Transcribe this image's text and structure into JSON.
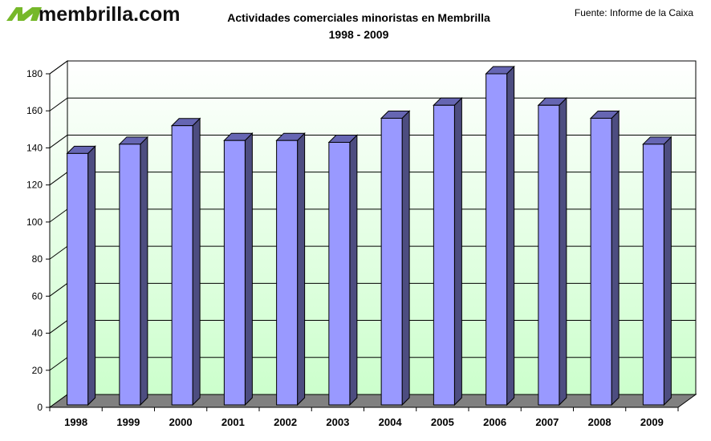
{
  "header": {
    "logo_text": "membrilla.com",
    "title_line1": "Actividades comerciales minoristas en Membrilla",
    "title_line2": "1998 - 2009",
    "source": "Fuente: Informe de la Caixa"
  },
  "colors": {
    "bar_front": "#9999ff",
    "bar_side": "#4d4d80",
    "bar_top": "#6666b3",
    "floor": "#808080",
    "wall_top": "#ffffff",
    "wall_bottom": "#ccffcc",
    "logo_green": "#76b82a"
  },
  "chart_data": {
    "type": "bar",
    "title": "Actividades comerciales minoristas en Membrilla",
    "subtitle": "1998 - 2009",
    "categories": [
      "1998",
      "1999",
      "2000",
      "2001",
      "2002",
      "2003",
      "2004",
      "2005",
      "2006",
      "2007",
      "2008",
      "2009"
    ],
    "values": [
      137,
      142,
      152,
      144,
      144,
      143,
      156,
      163,
      180,
      163,
      156,
      142
    ],
    "ylim": [
      0,
      180
    ],
    "yticks": [
      "0",
      "20",
      "40",
      "60",
      "80",
      "100",
      "120",
      "140",
      "160",
      "180"
    ],
    "grid": true,
    "style": "3d"
  }
}
